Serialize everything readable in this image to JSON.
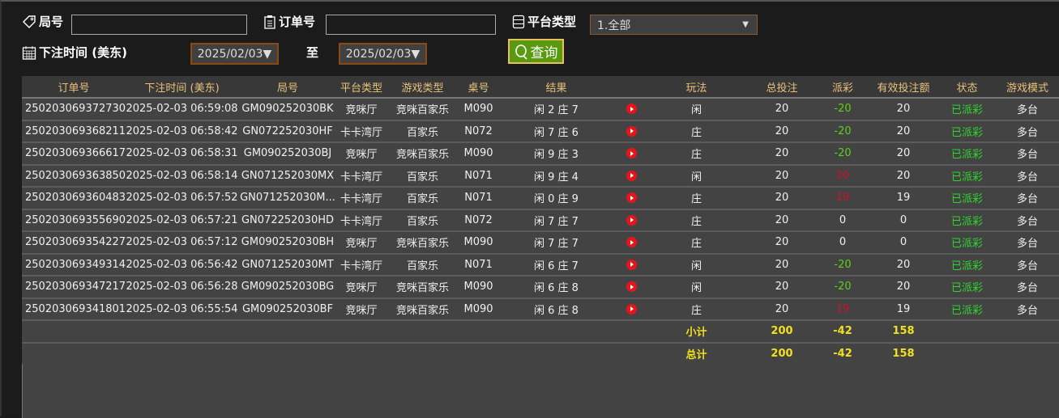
{
  "filters": {
    "round_label": "局号",
    "round_value": "",
    "order_label": "订单号",
    "order_value": "",
    "platform_label": "平台类型",
    "platform_value": "1.全部",
    "time_label": "下注时间 (美东)",
    "date_from": "2025/02/03▼",
    "to_label": "至",
    "date_to": "2025/02/03▼",
    "query_label": "查询"
  },
  "table": {
    "headers": [
      "订单号",
      "下注时间 (美东)",
      "局号",
      "平台类型",
      "游戏类型",
      "桌号",
      "结果",
      "",
      "玩法",
      "总投注",
      "派彩",
      "有效投注额",
      "状态",
      "游戏模式"
    ],
    "rows": [
      [
        "250203069372730",
        "2025-02-03 06:59:08",
        "GM090252030BK",
        "竞咪厅",
        "竞咪百家乐",
        "M090",
        "闲 2 庄 7",
        "闲",
        "20",
        "-20",
        "20",
        "已派彩",
        "多台"
      ],
      [
        "250203069368211",
        "2025-02-03 06:58:42",
        "GN072252030HF",
        "卡卡湾厅",
        "百家乐",
        "N072",
        "闲 7 庄 6",
        "庄",
        "20",
        "-20",
        "20",
        "已派彩",
        "多台"
      ],
      [
        "250203069366617",
        "2025-02-03 06:58:31",
        "GM090252030BJ",
        "竞咪厅",
        "竞咪百家乐",
        "M090",
        "闲 9 庄 3",
        "庄",
        "20",
        "-20",
        "20",
        "已派彩",
        "多台"
      ],
      [
        "250203069363850",
        "2025-02-03 06:58:14",
        "GN071252030MX",
        "卡卡湾厅",
        "百家乐",
        "N071",
        "闲 9 庄 4",
        "闲",
        "20",
        "20",
        "20",
        "已派彩",
        "多台"
      ],
      [
        "250203069360483",
        "2025-02-03 06:57:52",
        "GN071252030M...",
        "卡卡湾厅",
        "百家乐",
        "N071",
        "闲 0 庄 9",
        "庄",
        "20",
        "19",
        "19",
        "已派彩",
        "多台"
      ],
      [
        "250203069355690",
        "2025-02-03 06:57:21",
        "GN072252030HD",
        "卡卡湾厅",
        "百家乐",
        "N072",
        "闲 7 庄 7",
        "庄",
        "20",
        "0",
        "0",
        "已派彩",
        "多台"
      ],
      [
        "250203069354227",
        "2025-02-03 06:57:12",
        "GM090252030BH",
        "竞咪厅",
        "竞咪百家乐",
        "M090",
        "闲 7 庄 7",
        "庄",
        "20",
        "0",
        "0",
        "已派彩",
        "多台"
      ],
      [
        "250203069349314",
        "2025-02-03 06:56:42",
        "GN071252030MT",
        "卡卡湾厅",
        "百家乐",
        "N071",
        "闲 6 庄 7",
        "闲",
        "20",
        "-20",
        "20",
        "已派彩",
        "多台"
      ],
      [
        "250203069347217",
        "2025-02-03 06:56:28",
        "GM090252030BG",
        "竞咪厅",
        "竞咪百家乐",
        "M090",
        "闲 6 庄 8",
        "闲",
        "20",
        "-20",
        "20",
        "已派彩",
        "多台"
      ],
      [
        "250203069341801",
        "2025-02-03 06:55:54",
        "GM090252030BF",
        "竞咪厅",
        "竞咪百家乐",
        "M090",
        "闲 6 庄 8",
        "庄",
        "20",
        "19",
        "19",
        "已派彩",
        "多台"
      ]
    ],
    "subtotal": {
      "label": "小计",
      "bet": "200",
      "payout": "-42",
      "valid": "158"
    },
    "total": {
      "label": "总计",
      "bet": "200",
      "payout": "-42",
      "valid": "158"
    }
  },
  "colors": {
    "loss": "#5fcf1c",
    "win": "#d0102a",
    "status": "#2ed62e",
    "summary": "#f0e020",
    "header": "#e8c27a"
  }
}
